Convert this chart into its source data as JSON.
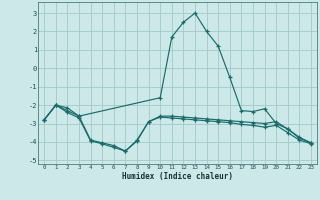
{
  "xlabel": "Humidex (Indice chaleur)",
  "bg_color": "#cce8e8",
  "grid_color": "#a0c8c8",
  "line_color": "#1a6b6b",
  "xlim": [
    -0.5,
    23.5
  ],
  "ylim": [
    -5.2,
    3.6
  ],
  "yticks": [
    -5,
    -4,
    -3,
    -2,
    -1,
    0,
    1,
    2,
    3
  ],
  "xticks": [
    0,
    1,
    2,
    3,
    4,
    5,
    6,
    7,
    8,
    9,
    10,
    11,
    12,
    13,
    14,
    15,
    16,
    17,
    18,
    19,
    20,
    21,
    22,
    23
  ],
  "line1_x": [
    0,
    1,
    2,
    3,
    10,
    11,
    12,
    13,
    14,
    15,
    16,
    17,
    18,
    19,
    20,
    21,
    22,
    23
  ],
  "line1_y": [
    -2.8,
    -2.0,
    -2.15,
    -2.6,
    -1.6,
    1.7,
    2.5,
    3.0,
    2.0,
    1.2,
    -0.5,
    -2.3,
    -2.35,
    -2.2,
    -3.0,
    -3.3,
    -3.8,
    -4.05
  ],
  "line2_x": [
    0,
    1,
    2,
    3,
    4,
    5,
    6,
    7,
    8,
    9,
    10,
    11,
    12,
    13,
    14,
    15,
    16,
    17,
    18,
    19,
    20,
    21,
    22,
    23
  ],
  "line2_y": [
    -2.8,
    -2.0,
    -2.3,
    -2.6,
    -3.9,
    -4.05,
    -4.2,
    -4.5,
    -3.9,
    -2.9,
    -2.6,
    -2.6,
    -2.65,
    -2.7,
    -2.75,
    -2.8,
    -2.85,
    -2.9,
    -2.95,
    -3.0,
    -2.9,
    -3.3,
    -3.75,
    -4.05
  ],
  "line3_x": [
    0,
    1,
    2,
    3,
    4,
    5,
    6,
    7,
    8,
    9,
    10,
    11,
    12,
    13,
    14,
    15,
    16,
    17,
    18,
    19,
    20,
    21,
    22,
    23
  ],
  "line3_y": [
    -2.8,
    -2.0,
    -2.4,
    -2.7,
    -3.95,
    -4.1,
    -4.3,
    -4.5,
    -3.95,
    -2.9,
    -2.65,
    -2.7,
    -2.75,
    -2.8,
    -2.85,
    -2.9,
    -2.95,
    -3.05,
    -3.1,
    -3.2,
    -3.1,
    -3.5,
    -3.9,
    -4.1
  ]
}
